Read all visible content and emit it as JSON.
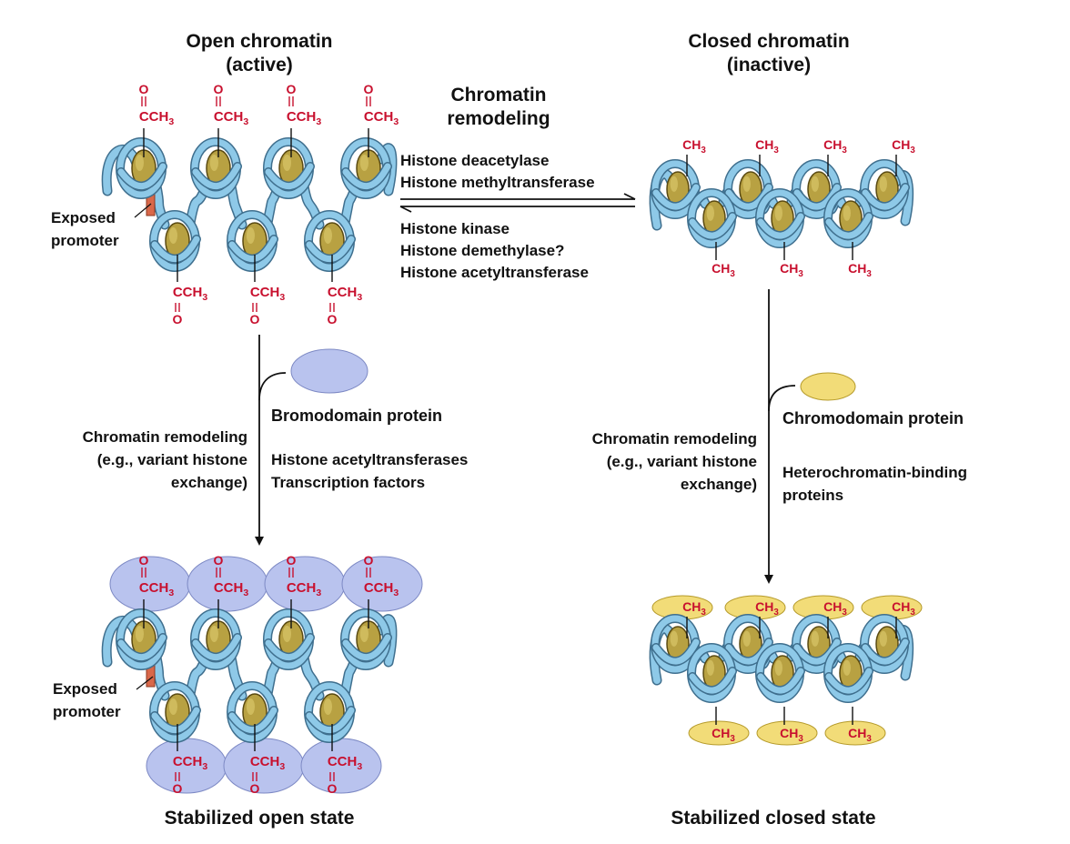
{
  "colors": {
    "dna_fill": "#8ec9e8",
    "dna_stroke": "#3f6f8e",
    "nucleosome_fill": "#b8a142",
    "nucleosome_stroke": "#5a4a12",
    "promoter": "#d9684a",
    "chem_label": "#c8102e",
    "bromodomain": "#b9c3ee",
    "chromodomain": "#f2dc78",
    "text": "#111111"
  },
  "titles": {
    "open_line1": "Open chromatin",
    "open_line2": "(active)",
    "closed_line1": "Closed chromatin",
    "closed_line2": "(inactive)",
    "remodel_line1": "Chromatin",
    "remodel_line2": "remodeling"
  },
  "forward_enzymes": [
    "Histone deacetylase",
    "Histone methyltransferase"
  ],
  "reverse_enzymes": [
    "Histone kinase",
    "Histone demethylase?",
    "Histone acetyltransferase"
  ],
  "chem": {
    "oxygen": "O",
    "acetyl_main": "CCH",
    "methyl_main": "CH",
    "subscript": "3"
  },
  "exposed_promoter": [
    "Exposed",
    "promoter"
  ],
  "left_path": {
    "process": [
      "Chromatin remodeling",
      "(e.g., variant histone",
      "exchange)"
    ],
    "protein": "Bromodomain protein",
    "factors": [
      "Histone acetyltransferases",
      "Transcription factors"
    ]
  },
  "right_path": {
    "process": [
      "Chromatin remodeling",
      "(e.g., variant histone",
      "exchange)"
    ],
    "protein": "Chromodomain protein",
    "factors": [
      "Heterochromatin-binding",
      "proteins"
    ]
  },
  "results": {
    "open": "Stabilized open state",
    "closed": "Stabilized closed state"
  }
}
